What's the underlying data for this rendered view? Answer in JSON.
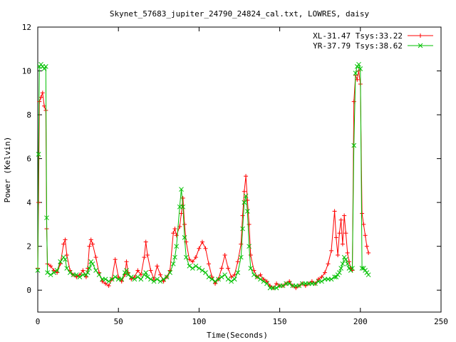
{
  "chart_data": {
    "type": "line",
    "title": "Skynet_57683_jupiter_24790_24824_cal.txt, LOWRES, daisy",
    "xlabel": "Time(Seconds)",
    "ylabel": "Power (Kelvin)",
    "xlim": [
      0,
      250
    ],
    "ylim": [
      -1,
      12
    ],
    "xticks": [
      0,
      50,
      100,
      150,
      200,
      250
    ],
    "yticks": [
      0,
      2,
      4,
      6,
      8,
      10,
      12
    ],
    "legend_position": "top-right",
    "grid": false,
    "series": [
      {
        "name": "XL-31.47 Tsys:33.22",
        "color": "#ff0000",
        "marker": "plus",
        "points": [
          [
            0.0,
            1.0
          ],
          [
            0.5,
            4.0
          ],
          [
            1.0,
            8.6
          ],
          [
            2.0,
            8.8
          ],
          [
            3.0,
            9.0
          ],
          [
            4.0,
            8.4
          ],
          [
            5.0,
            8.2
          ],
          [
            5.5,
            2.8
          ],
          [
            6.0,
            1.2
          ],
          [
            8.0,
            1.1
          ],
          [
            10.0,
            0.9
          ],
          [
            12.0,
            0.8
          ],
          [
            14.0,
            1.2
          ],
          [
            16.0,
            2.1
          ],
          [
            17.0,
            2.3
          ],
          [
            18.0,
            1.6
          ],
          [
            20.0,
            0.9
          ],
          [
            22.0,
            0.7
          ],
          [
            24.0,
            0.6
          ],
          [
            26.0,
            0.7
          ],
          [
            28.0,
            0.9
          ],
          [
            30.0,
            0.6
          ],
          [
            31.0,
            1.0
          ],
          [
            32.0,
            2.0
          ],
          [
            33.0,
            2.3
          ],
          [
            34.0,
            2.1
          ],
          [
            36.0,
            1.5
          ],
          [
            38.0,
            0.8
          ],
          [
            40.0,
            0.4
          ],
          [
            42.0,
            0.3
          ],
          [
            44.0,
            0.2
          ],
          [
            46.0,
            0.5
          ],
          [
            48.0,
            1.4
          ],
          [
            50.0,
            0.6
          ],
          [
            52.0,
            0.4
          ],
          [
            54.0,
            0.7
          ],
          [
            55.0,
            1.3
          ],
          [
            56.0,
            0.8
          ],
          [
            58.0,
            0.5
          ],
          [
            60.0,
            0.6
          ],
          [
            62.0,
            0.9
          ],
          [
            64.0,
            0.7
          ],
          [
            66.0,
            1.5
          ],
          [
            67.0,
            2.2
          ],
          [
            68.0,
            1.6
          ],
          [
            70.0,
            0.9
          ],
          [
            72.0,
            0.5
          ],
          [
            74.0,
            1.1
          ],
          [
            76.0,
            0.7
          ],
          [
            78.0,
            0.4
          ],
          [
            80.0,
            0.6
          ],
          [
            82.0,
            0.9
          ],
          [
            84.0,
            2.6
          ],
          [
            85.0,
            2.8
          ],
          [
            86.0,
            2.5
          ],
          [
            88.0,
            2.9
          ],
          [
            89.0,
            3.5
          ],
          [
            90.0,
            4.2
          ],
          [
            91.0,
            3.0
          ],
          [
            92.0,
            2.2
          ],
          [
            94.0,
            1.4
          ],
          [
            96.0,
            1.3
          ],
          [
            98.0,
            1.5
          ],
          [
            100.0,
            1.9
          ],
          [
            102.0,
            2.2
          ],
          [
            104.0,
            1.9
          ],
          [
            106.0,
            1.2
          ],
          [
            108.0,
            0.6
          ],
          [
            110.0,
            0.3
          ],
          [
            112.0,
            0.5
          ],
          [
            114.0,
            1.0
          ],
          [
            116.0,
            1.6
          ],
          [
            118.0,
            1.0
          ],
          [
            120.0,
            0.6
          ],
          [
            122.0,
            0.7
          ],
          [
            124.0,
            1.3
          ],
          [
            126.0,
            2.1
          ],
          [
            127.0,
            3.4
          ],
          [
            128.0,
            4.5
          ],
          [
            129.0,
            5.2
          ],
          [
            130.0,
            4.1
          ],
          [
            131.0,
            3.0
          ],
          [
            132.0,
            1.6
          ],
          [
            134.0,
            0.9
          ],
          [
            136.0,
            0.6
          ],
          [
            138.0,
            0.7
          ],
          [
            140.0,
            0.5
          ],
          [
            142.0,
            0.4
          ],
          [
            144.0,
            0.2
          ],
          [
            146.0,
            0.1
          ],
          [
            148.0,
            0.3
          ],
          [
            150.0,
            0.2
          ],
          [
            152.0,
            0.2
          ],
          [
            154.0,
            0.3
          ],
          [
            156.0,
            0.4
          ],
          [
            158.0,
            0.2
          ],
          [
            160.0,
            0.1
          ],
          [
            162.0,
            0.2
          ],
          [
            164.0,
            0.3
          ],
          [
            166.0,
            0.2
          ],
          [
            168.0,
            0.3
          ],
          [
            170.0,
            0.4
          ],
          [
            172.0,
            0.3
          ],
          [
            174.0,
            0.5
          ],
          [
            176.0,
            0.6
          ],
          [
            178.0,
            0.8
          ],
          [
            180.0,
            1.2
          ],
          [
            182.0,
            1.8
          ],
          [
            184.0,
            3.6
          ],
          [
            185.0,
            2.4
          ],
          [
            186.0,
            1.6
          ],
          [
            187.0,
            2.6
          ],
          [
            188.0,
            3.2
          ],
          [
            189.0,
            2.1
          ],
          [
            190.0,
            3.4
          ],
          [
            191.0,
            2.6
          ],
          [
            192.0,
            1.7
          ],
          [
            193.0,
            1.3
          ],
          [
            194.0,
            1.0
          ],
          [
            195.0,
            0.9
          ],
          [
            196.0,
            8.6
          ],
          [
            197.0,
            9.8
          ],
          [
            198.0,
            9.6
          ],
          [
            199.0,
            10.0
          ],
          [
            200.0,
            9.4
          ],
          [
            201.0,
            3.5
          ],
          [
            202.0,
            3.0
          ],
          [
            203.0,
            2.5
          ],
          [
            204.0,
            2.0
          ],
          [
            205.0,
            1.7
          ]
        ]
      },
      {
        "name": "YR-37.79 Tsys:38.62",
        "color": "#00c000",
        "marker": "cross",
        "points": [
          [
            0.0,
            0.9
          ],
          [
            0.5,
            6.2
          ],
          [
            1.0,
            10.2
          ],
          [
            2.0,
            10.3
          ],
          [
            3.0,
            10.2
          ],
          [
            4.0,
            10.1
          ],
          [
            5.0,
            10.2
          ],
          [
            5.5,
            3.3
          ],
          [
            6.0,
            0.8
          ],
          [
            8.0,
            0.7
          ],
          [
            10.0,
            0.8
          ],
          [
            12.0,
            0.9
          ],
          [
            14.0,
            1.3
          ],
          [
            16.0,
            1.5
          ],
          [
            17.0,
            1.4
          ],
          [
            18.0,
            1.0
          ],
          [
            20.0,
            0.8
          ],
          [
            22.0,
            0.7
          ],
          [
            24.0,
            0.7
          ],
          [
            26.0,
            0.6
          ],
          [
            28.0,
            0.7
          ],
          [
            30.0,
            0.7
          ],
          [
            31.0,
            0.8
          ],
          [
            32.0,
            1.0
          ],
          [
            33.0,
            1.3
          ],
          [
            34.0,
            1.2
          ],
          [
            36.0,
            0.9
          ],
          [
            38.0,
            0.7
          ],
          [
            40.0,
            0.5
          ],
          [
            42.0,
            0.5
          ],
          [
            44.0,
            0.4
          ],
          [
            46.0,
            0.5
          ],
          [
            48.0,
            0.6
          ],
          [
            50.0,
            0.5
          ],
          [
            52.0,
            0.5
          ],
          [
            54.0,
            0.8
          ],
          [
            55.0,
            0.9
          ],
          [
            56.0,
            0.7
          ],
          [
            58.0,
            0.6
          ],
          [
            60.0,
            0.5
          ],
          [
            62.0,
            0.6
          ],
          [
            64.0,
            0.5
          ],
          [
            66.0,
            0.7
          ],
          [
            67.0,
            0.8
          ],
          [
            68.0,
            0.6
          ],
          [
            70.0,
            0.5
          ],
          [
            72.0,
            0.4
          ],
          [
            74.0,
            0.5
          ],
          [
            76.0,
            0.4
          ],
          [
            78.0,
            0.5
          ],
          [
            80.0,
            0.6
          ],
          [
            82.0,
            0.8
          ],
          [
            84.0,
            1.2
          ],
          [
            85.0,
            1.5
          ],
          [
            86.0,
            2.0
          ],
          [
            88.0,
            3.8
          ],
          [
            89.0,
            4.6
          ],
          [
            90.0,
            3.8
          ],
          [
            91.0,
            2.4
          ],
          [
            92.0,
            1.5
          ],
          [
            94.0,
            1.1
          ],
          [
            96.0,
            1.0
          ],
          [
            98.0,
            1.1
          ],
          [
            100.0,
            1.0
          ],
          [
            102.0,
            0.9
          ],
          [
            104.0,
            0.8
          ],
          [
            106.0,
            0.6
          ],
          [
            108.0,
            0.5
          ],
          [
            110.0,
            0.4
          ],
          [
            112.0,
            0.5
          ],
          [
            114.0,
            0.6
          ],
          [
            116.0,
            0.7
          ],
          [
            118.0,
            0.5
          ],
          [
            120.0,
            0.4
          ],
          [
            122.0,
            0.5
          ],
          [
            124.0,
            0.8
          ],
          [
            126.0,
            1.5
          ],
          [
            127.0,
            2.8
          ],
          [
            128.0,
            4.0
          ],
          [
            129.0,
            4.3
          ],
          [
            130.0,
            3.6
          ],
          [
            131.0,
            2.0
          ],
          [
            132.0,
            1.0
          ],
          [
            134.0,
            0.7
          ],
          [
            136.0,
            0.6
          ],
          [
            138.0,
            0.5
          ],
          [
            140.0,
            0.4
          ],
          [
            142.0,
            0.3
          ],
          [
            144.0,
            0.1
          ],
          [
            146.0,
            0.1
          ],
          [
            148.0,
            0.1
          ],
          [
            150.0,
            0.2
          ],
          [
            152.0,
            0.2
          ],
          [
            154.0,
            0.3
          ],
          [
            156.0,
            0.3
          ],
          [
            158.0,
            0.2
          ],
          [
            160.0,
            0.2
          ],
          [
            162.0,
            0.2
          ],
          [
            164.0,
            0.3
          ],
          [
            166.0,
            0.3
          ],
          [
            168.0,
            0.3
          ],
          [
            170.0,
            0.3
          ],
          [
            172.0,
            0.3
          ],
          [
            174.0,
            0.4
          ],
          [
            176.0,
            0.4
          ],
          [
            178.0,
            0.5
          ],
          [
            180.0,
            0.5
          ],
          [
            182.0,
            0.5
          ],
          [
            184.0,
            0.6
          ],
          [
            185.0,
            0.6
          ],
          [
            186.0,
            0.7
          ],
          [
            187.0,
            0.8
          ],
          [
            188.0,
            1.0
          ],
          [
            189.0,
            1.2
          ],
          [
            190.0,
            1.5
          ],
          [
            191.0,
            1.4
          ],
          [
            192.0,
            1.2
          ],
          [
            193.0,
            1.0
          ],
          [
            194.0,
            0.9
          ],
          [
            195.0,
            1.0
          ],
          [
            196.0,
            6.6
          ],
          [
            197.0,
            9.9
          ],
          [
            198.0,
            10.2
          ],
          [
            199.0,
            10.3
          ],
          [
            200.0,
            10.1
          ],
          [
            201.0,
            1.0
          ],
          [
            202.0,
            1.0
          ],
          [
            203.0,
            0.9
          ],
          [
            204.0,
            0.8
          ],
          [
            205.0,
            0.7
          ]
        ]
      }
    ]
  }
}
